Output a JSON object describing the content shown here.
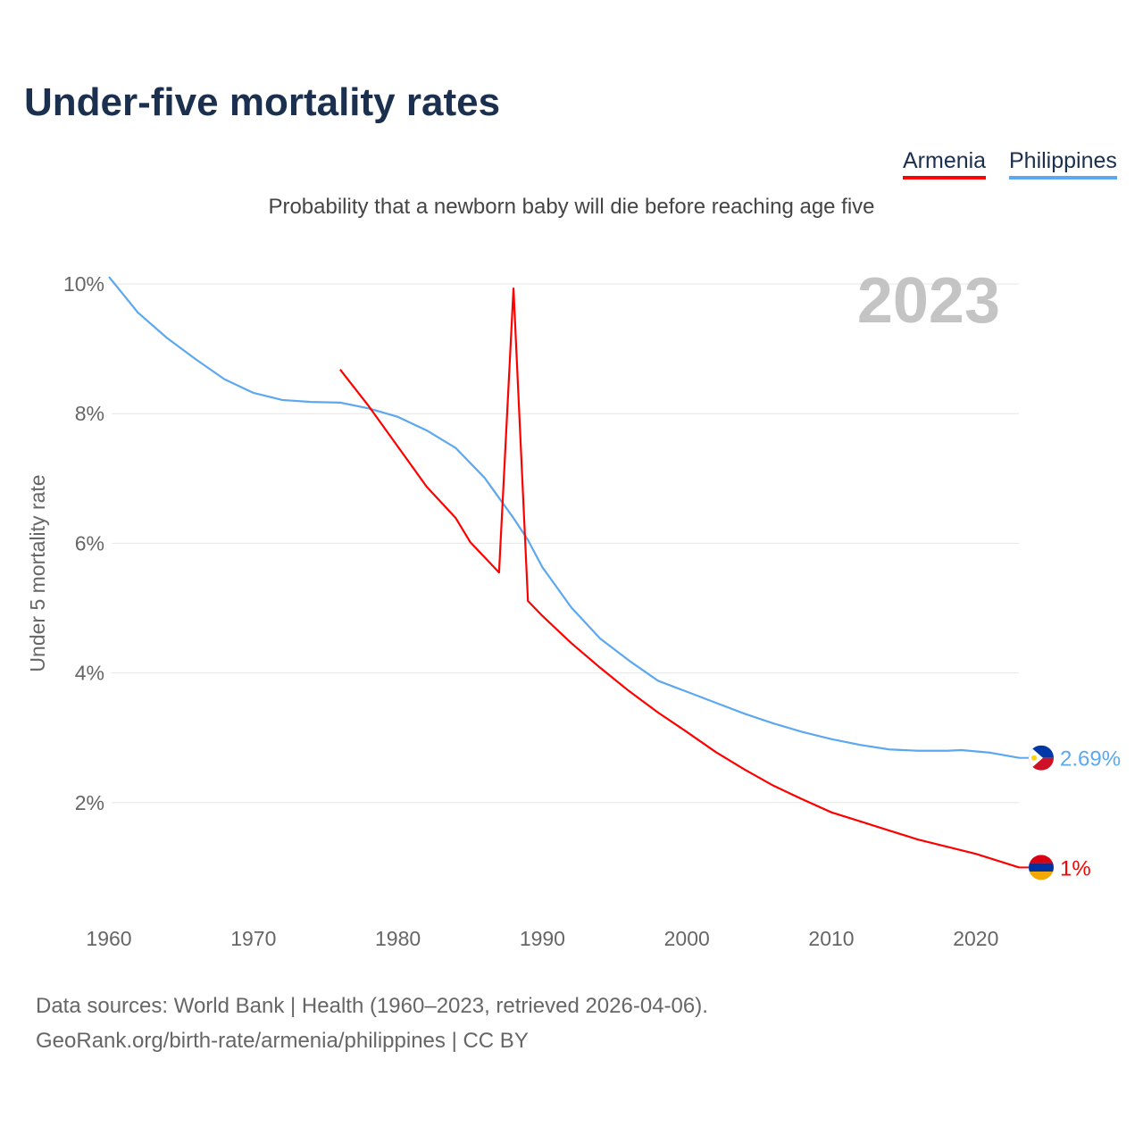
{
  "title": "Under-five mortality rates",
  "subtitle": "Probability that a newborn baby will die before reaching age five",
  "legend": [
    "Armenia",
    "Philippines"
  ],
  "year_label": "2023",
  "source_line1": "Data sources: World Bank | Health (1960–2023, retrieved 2026-04-06).",
  "source_line2": "GeoRank.org/birth-rate/armenia/philippines | CC BY",
  "chart_data": {
    "type": "line",
    "ylabel": "Under 5 mortality rate",
    "xlim": [
      1960,
      2023
    ],
    "ylim": [
      0,
      10
    ],
    "xticks": [
      "1960",
      "1970",
      "1980",
      "1990",
      "2000",
      "2010",
      "2020"
    ],
    "yticks": [
      "2%",
      "4%",
      "6%",
      "8%",
      "10%"
    ],
    "series": [
      {
        "name": "Philippines",
        "color": "#5ca8f0",
        "end_label": "2.69%",
        "x": [
          1960,
          1962,
          1964,
          1966,
          1968,
          1970,
          1972,
          1974,
          1976,
          1978,
          1980,
          1982,
          1984,
          1986,
          1988,
          1989,
          1990,
          1992,
          1994,
          1996,
          1998,
          2000,
          2002,
          2004,
          2006,
          2008,
          2010,
          2012,
          2014,
          2016,
          2018,
          2019,
          2021,
          2023
        ],
        "y": [
          10.11,
          9.56,
          9.17,
          8.84,
          8.53,
          8.32,
          8.21,
          8.18,
          8.17,
          8.08,
          7.95,
          7.74,
          7.47,
          7.01,
          6.39,
          6.05,
          5.63,
          5.01,
          4.53,
          4.19,
          3.88,
          3.71,
          3.54,
          3.37,
          3.22,
          3.09,
          2.98,
          2.89,
          2.82,
          2.8,
          2.8,
          2.81,
          2.77,
          2.69
        ]
      },
      {
        "name": "Armenia",
        "color": "#ff0000",
        "end_label": "1%",
        "x": [
          1976,
          1978,
          1980,
          1982,
          1984,
          1985,
          1987,
          1988,
          1989,
          1990,
          1992,
          1994,
          1996,
          1998,
          2000,
          2002,
          2004,
          2006,
          2008,
          2010,
          2012,
          2014,
          2016,
          2018,
          2020,
          2023
        ],
        "y": [
          8.68,
          8.11,
          7.49,
          6.87,
          6.39,
          6.02,
          5.55,
          9.93,
          5.11,
          4.88,
          4.46,
          4.08,
          3.72,
          3.39,
          3.09,
          2.78,
          2.51,
          2.26,
          2.05,
          1.85,
          1.71,
          1.57,
          1.43,
          1.32,
          1.21,
          1.0
        ]
      }
    ]
  }
}
